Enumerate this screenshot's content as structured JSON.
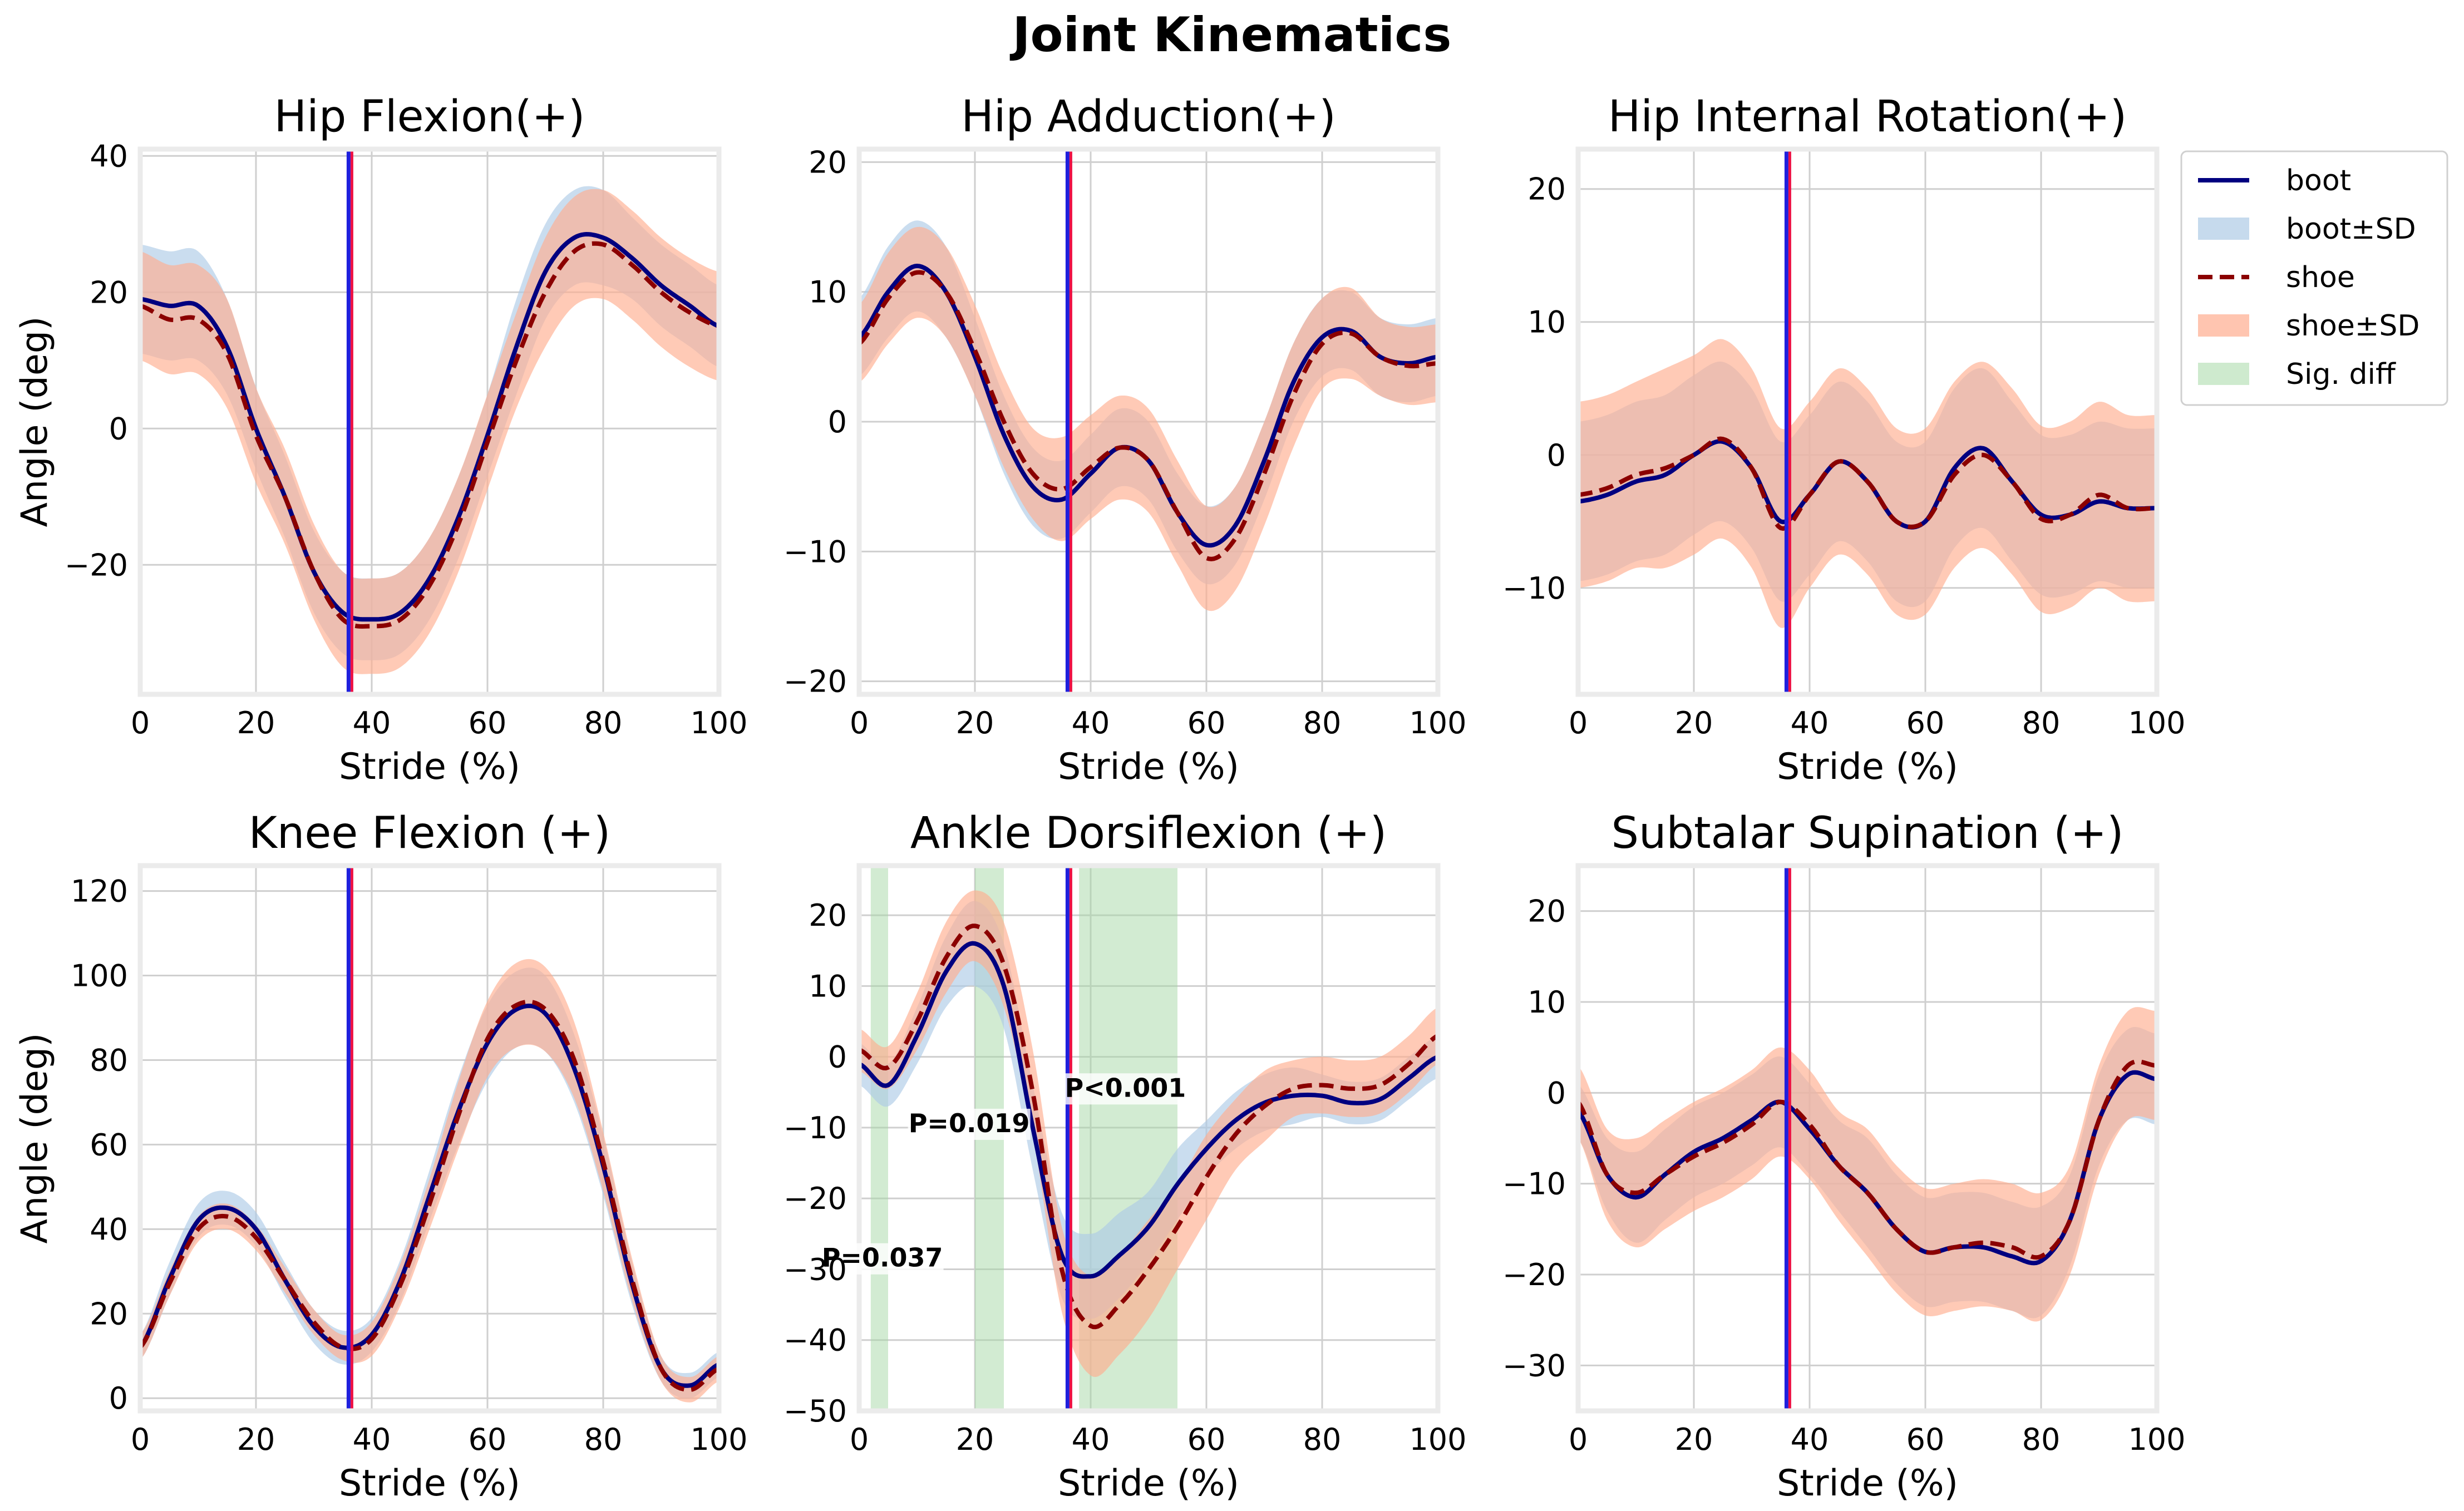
{
  "figure_title": "Joint Kinematics",
  "colors": {
    "boot": "#000080",
    "boot_sd": "#aecbe6",
    "shoe": "#8b0000",
    "shoe_sd": "#ffad8f",
    "sig": "#a6d8a6",
    "vline_blue": "#1f1fdd",
    "vline_red": "#ee1144",
    "grid": "#cfcfcf",
    "frame": "#ebebeb"
  },
  "legend": {
    "placement": "right of top-right panel",
    "items": [
      "boot",
      "boot±SD",
      "shoe",
      "shoe±SD",
      "Sig. diff"
    ]
  },
  "chart_data": [
    {
      "type": "line",
      "title": "Hip Flexion(+)",
      "xlabel": "Stride (%)",
      "ylabel": "Angle (deg)",
      "xlim": [
        0,
        100
      ],
      "ylim": [
        -39,
        41
      ],
      "xticks": [
        0,
        20,
        40,
        60,
        80,
        100
      ],
      "yticks": [
        -20,
        0,
        20,
        40
      ],
      "grid": true,
      "x": [
        0,
        5,
        10,
        15,
        20,
        25,
        30,
        35,
        40,
        45,
        50,
        55,
        60,
        65,
        70,
        75,
        80,
        85,
        90,
        95,
        100
      ],
      "series": [
        {
          "name": "boot",
          "values": [
            19,
            18,
            18,
            12,
            0,
            -10,
            -21,
            -27,
            -28,
            -27,
            -22,
            -13,
            -1,
            12,
            23,
            28,
            28,
            25,
            21,
            18,
            15
          ],
          "sd": [
            8,
            8,
            8,
            7,
            6,
            6,
            6,
            6,
            6,
            6,
            6,
            6,
            6,
            7,
            7,
            7,
            7,
            6,
            6,
            6,
            6
          ]
        },
        {
          "name": "shoe",
          "values": [
            18,
            16,
            16,
            11,
            -1,
            -10,
            -21,
            -28,
            -29,
            -28,
            -23,
            -14,
            -2,
            10,
            20,
            26,
            27,
            24,
            20,
            17,
            15
          ],
          "sd": [
            8,
            8,
            8,
            8,
            7,
            7,
            7,
            7,
            7,
            7,
            7,
            7,
            7,
            7,
            8,
            8,
            8,
            8,
            8,
            8,
            8
          ]
        }
      ],
      "vlines": [
        36
      ],
      "sig_regions": []
    },
    {
      "type": "line",
      "title": "Hip Adduction(+)",
      "xlabel": "Stride (%)",
      "ylabel": "",
      "xlim": [
        0,
        100
      ],
      "ylim": [
        -21,
        21
      ],
      "xticks": [
        0,
        20,
        40,
        60,
        80,
        100
      ],
      "yticks": [
        -20,
        -10,
        0,
        10,
        20
      ],
      "grid": true,
      "x": [
        0,
        5,
        10,
        15,
        20,
        25,
        30,
        35,
        40,
        45,
        50,
        55,
        60,
        65,
        70,
        75,
        80,
        85,
        90,
        95,
        100
      ],
      "series": [
        {
          "name": "boot",
          "values": [
            6.5,
            10,
            12,
            10,
            5,
            -1,
            -5,
            -6,
            -4,
            -2,
            -3,
            -7,
            -9.5,
            -8,
            -3,
            3,
            6.5,
            7,
            5,
            4.5,
            5
          ],
          "sd": [
            3,
            3.5,
            3.5,
            3.5,
            3,
            3,
            3,
            3,
            3,
            3,
            3,
            3,
            3,
            3,
            3,
            3,
            3,
            3,
            3,
            3,
            3
          ]
        },
        {
          "name": "shoe",
          "values": [
            6,
            9.5,
            11.5,
            10,
            5.5,
            0,
            -4,
            -5.2,
            -3.5,
            -2,
            -3,
            -7,
            -10.5,
            -9,
            -4,
            2,
            6,
            6.8,
            5,
            4.3,
            4.5
          ],
          "sd": [
            3,
            3.5,
            3.5,
            3.5,
            3.5,
            3.5,
            3.5,
            4,
            4,
            4,
            4,
            4,
            4,
            4,
            4,
            4,
            3.5,
            3.5,
            3,
            3,
            3
          ]
        }
      ],
      "vlines": [
        36
      ],
      "sig_regions": []
    },
    {
      "type": "line",
      "title": "Hip Internal Rotation(+)",
      "xlabel": "Stride (%)",
      "ylabel": "",
      "xlim": [
        0,
        100
      ],
      "ylim": [
        -18,
        23
      ],
      "xticks": [
        0,
        20,
        40,
        60,
        80,
        100
      ],
      "yticks": [
        -10,
        0,
        10,
        20
      ],
      "grid": true,
      "x": [
        0,
        5,
        10,
        15,
        20,
        25,
        30,
        35,
        40,
        45,
        50,
        55,
        60,
        65,
        70,
        75,
        80,
        85,
        90,
        95,
        100
      ],
      "series": [
        {
          "name": "boot",
          "values": [
            -3.5,
            -3,
            -2,
            -1.5,
            0,
            1,
            -1,
            -5,
            -3,
            -0.5,
            -2,
            -5,
            -5,
            -1,
            0.5,
            -2,
            -4.5,
            -4.5,
            -3.5,
            -4,
            -4
          ],
          "sd": [
            6,
            6,
            6,
            6,
            6,
            6,
            6,
            6,
            6,
            6,
            6,
            6,
            6,
            6,
            6,
            6,
            6,
            6,
            6,
            6,
            6
          ]
        },
        {
          "name": "shoe",
          "values": [
            -3,
            -2.5,
            -1.5,
            -1,
            0,
            1.2,
            -1,
            -5.5,
            -3,
            -0.5,
            -2,
            -5,
            -5,
            -1.5,
            0,
            -2,
            -4.8,
            -4.5,
            -3,
            -4,
            -4
          ],
          "sd": [
            7,
            7,
            7,
            7.5,
            7.5,
            7.5,
            7.5,
            7.5,
            7,
            7,
            7,
            7,
            7,
            7,
            7,
            7,
            7,
            7,
            7,
            7,
            7
          ]
        }
      ],
      "vlines": [
        36
      ],
      "sig_regions": []
    },
    {
      "type": "line",
      "title": "Knee Flexion (+)",
      "xlabel": "Stride (%)",
      "ylabel": "Angle (deg)",
      "xlim": [
        0,
        100
      ],
      "ylim": [
        -3,
        126
      ],
      "xticks": [
        0,
        20,
        40,
        60,
        80,
        100
      ],
      "yticks": [
        0,
        20,
        40,
        60,
        80,
        100,
        120
      ],
      "grid": true,
      "x": [
        0,
        5,
        10,
        15,
        20,
        25,
        30,
        35,
        40,
        45,
        50,
        55,
        60,
        65,
        70,
        75,
        80,
        85,
        90,
        95,
        100
      ],
      "series": [
        {
          "name": "boot",
          "values": [
            12,
            28,
            42,
            45,
            40,
            28,
            17,
            12,
            15,
            28,
            48,
            68,
            84,
            92,
            91,
            78,
            55,
            27,
            7,
            3,
            8
          ],
          "sd": [
            3,
            4,
            4,
            4,
            4,
            4,
            4,
            4,
            4,
            5,
            6,
            8,
            9,
            9,
            9,
            8,
            7,
            5,
            3,
            3,
            3
          ]
        },
        {
          "name": "shoe",
          "values": [
            12,
            27,
            40,
            43,
            38,
            28,
            18,
            12,
            14,
            27,
            46,
            67,
            85,
            93,
            92,
            80,
            56,
            28,
            7,
            2,
            7
          ],
          "sd": [
            3,
            3,
            3,
            3,
            3,
            3,
            3,
            3,
            4,
            5,
            6,
            8,
            9,
            10,
            10,
            9,
            7,
            5,
            3,
            3,
            3
          ]
        }
      ],
      "vlines": [
        36
      ],
      "sig_regions": []
    },
    {
      "type": "line",
      "title": "Ankle Dorsiflexion (+)",
      "xlabel": "Stride (%)",
      "ylabel": "",
      "xlim": [
        0,
        100
      ],
      "ylim": [
        -50,
        27
      ],
      "xticks": [
        0,
        20,
        40,
        60,
        80,
        100
      ],
      "yticks": [
        -50,
        -40,
        -30,
        -20,
        -10,
        0,
        10,
        20
      ],
      "grid": true,
      "x": [
        0,
        5,
        10,
        15,
        20,
        25,
        30,
        35,
        40,
        45,
        50,
        55,
        60,
        65,
        70,
        75,
        80,
        85,
        90,
        95,
        100
      ],
      "series": [
        {
          "name": "boot",
          "values": [
            -1,
            -4,
            3,
            12,
            16,
            10,
            -10,
            -28,
            -31,
            -28,
            -24,
            -18,
            -13,
            -9,
            -6.5,
            -5.5,
            -5.5,
            -6.5,
            -6,
            -3,
            0
          ],
          "sd": [
            3,
            3,
            4,
            5,
            6,
            6,
            6,
            6,
            6,
            6,
            5,
            5,
            4,
            4,
            4,
            4,
            3,
            3,
            3,
            3,
            3
          ]
        },
        {
          "name": "shoe",
          "values": [
            1,
            -1.5,
            5,
            14,
            18.5,
            13,
            -5,
            -30,
            -38,
            -35,
            -30,
            -24,
            -17,
            -11,
            -7,
            -4.5,
            -4,
            -4.5,
            -4,
            -1,
            3
          ],
          "sd": [
            3,
            3,
            4,
            5,
            5,
            6,
            6,
            6,
            7,
            7,
            7,
            6,
            6,
            5,
            5,
            4,
            4,
            4,
            4,
            4,
            4
          ]
        }
      ],
      "vlines": [
        36
      ],
      "sig_regions": [
        [
          2,
          5
        ],
        [
          20,
          25
        ],
        [
          38,
          55
        ]
      ],
      "annotations": [
        {
          "text": "P=0.037",
          "x": 4,
          "y": -29
        },
        {
          "text": "P=0.019",
          "x": 19,
          "y": -10
        },
        {
          "text": "P<0.001",
          "x": 46,
          "y": -5
        }
      ]
    },
    {
      "type": "line",
      "title": "Subtalar Supination (+)",
      "xlabel": "Stride (%)",
      "ylabel": "",
      "xlim": [
        0,
        100
      ],
      "ylim": [
        -35,
        25
      ],
      "xticks": [
        0,
        20,
        40,
        60,
        80,
        100
      ],
      "yticks": [
        -30,
        -20,
        -10,
        0,
        10,
        20
      ],
      "grid": true,
      "x": [
        0,
        5,
        10,
        15,
        20,
        25,
        30,
        35,
        40,
        45,
        50,
        55,
        60,
        65,
        70,
        75,
        80,
        85,
        90,
        95,
        100
      ],
      "series": [
        {
          "name": "boot",
          "values": [
            -2,
            -9,
            -11.5,
            -9,
            -6.5,
            -5,
            -3,
            -1,
            -4,
            -8,
            -11,
            -15,
            -17.5,
            -17,
            -17,
            -18,
            -18.5,
            -14,
            -3,
            2,
            1.5
          ],
          "sd": [
            3,
            4,
            5,
            5,
            5,
            5,
            5,
            5,
            5,
            5,
            6,
            6,
            6,
            6,
            6,
            6,
            6,
            5,
            5,
            5,
            5
          ]
        },
        {
          "name": "shoe",
          "values": [
            -1,
            -9,
            -11,
            -9,
            -7,
            -5.5,
            -3.5,
            -1,
            -3.5,
            -8,
            -11,
            -15,
            -17.5,
            -17,
            -16.5,
            -17,
            -18,
            -14,
            -3,
            3,
            3
          ],
          "sd": [
            4,
            5,
            6,
            6,
            6,
            6,
            6,
            6,
            6,
            6,
            7,
            7,
            7,
            7,
            7,
            7,
            7,
            6,
            6,
            6,
            6
          ]
        }
      ],
      "vlines": [
        36
      ],
      "sig_regions": []
    }
  ]
}
